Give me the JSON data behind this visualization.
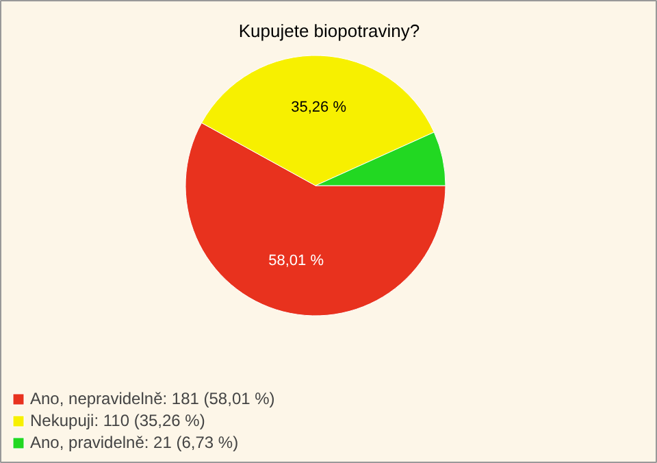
{
  "chart_data": {
    "type": "pie",
    "title": "Kupujete biopotraviny?",
    "categories": [
      "Ano, nepravidelně: 181 (58,01 %)",
      "Nekupuji: 110 (35,26 %)",
      "Ano, pravidelně: 21 (6,73 %)"
    ],
    "values": [
      58.01,
      35.26,
      6.73
    ],
    "colors": [
      "#e8321e",
      "#f7f000",
      "#22d822"
    ],
    "value_labels": [
      "58,01 %",
      "35,26 %",
      null
    ],
    "legend": "bottom left"
  }
}
